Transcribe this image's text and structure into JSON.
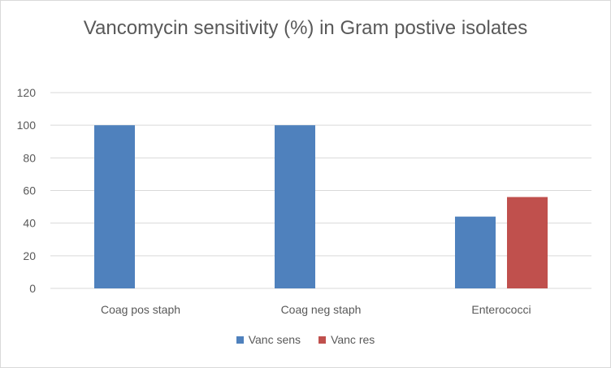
{
  "chart_data": {
    "type": "bar",
    "title": "Vancomycin sensitivity (%) in Gram postive isolates",
    "categories": [
      "Coag pos staph",
      "Coag neg staph",
      "Enterococci"
    ],
    "series": [
      {
        "name": "Vanc sens",
        "values": [
          100,
          100,
          44
        ],
        "color": "#4f81bd"
      },
      {
        "name": "Vanc res",
        "values": [
          0,
          0,
          56
        ],
        "color": "#c0504d"
      }
    ],
    "ylim": [
      0,
      120
    ],
    "yticks": [
      0,
      20,
      40,
      60,
      80,
      100,
      120
    ],
    "grid": true,
    "legend_position": "bottom"
  }
}
